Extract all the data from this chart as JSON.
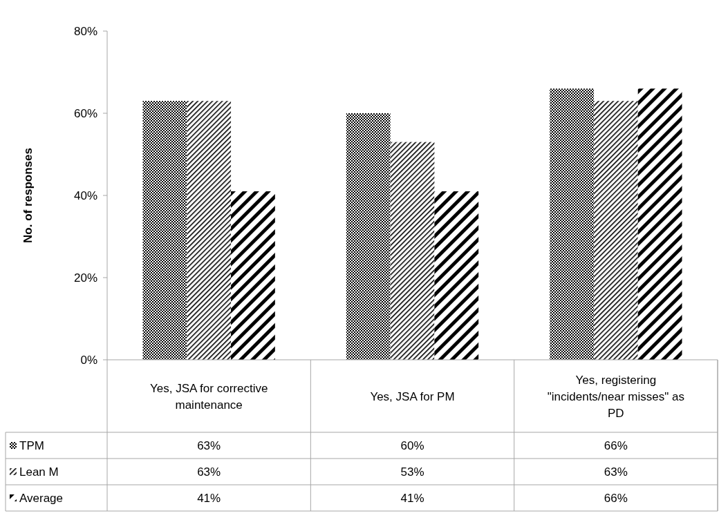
{
  "chart_data": {
    "type": "bar",
    "ylabel": "No. of responses",
    "categories": [
      "Yes, JSA for corrective maintenance",
      "Yes, JSA for PM",
      "Yes, registering \"incidents/near misses\" as PD"
    ],
    "series": [
      {
        "name": "TPM",
        "color": "#000000",
        "values": [
          63,
          60,
          66
        ],
        "value_labels": [
          "63%",
          "60%",
          "66%"
        ]
      },
      {
        "name": "Lean M",
        "color": "#000000",
        "values": [
          63,
          53,
          63
        ],
        "value_labels": [
          "63%",
          "53%",
          "63%"
        ]
      },
      {
        "name": "Average",
        "color": "#000000",
        "values": [
          41,
          41,
          66
        ],
        "value_labels": [
          "41%",
          "41%",
          "66%"
        ]
      }
    ],
    "ylim": [
      0,
      80
    ],
    "yticks": [
      {
        "value": 0,
        "label": "0%"
      },
      {
        "value": 20,
        "label": "20%"
      },
      {
        "value": 40,
        "label": "40%"
      },
      {
        "value": 60,
        "label": "60%"
      },
      {
        "value": 80,
        "label": "80%"
      }
    ],
    "grid": false,
    "legend": "bottom"
  }
}
